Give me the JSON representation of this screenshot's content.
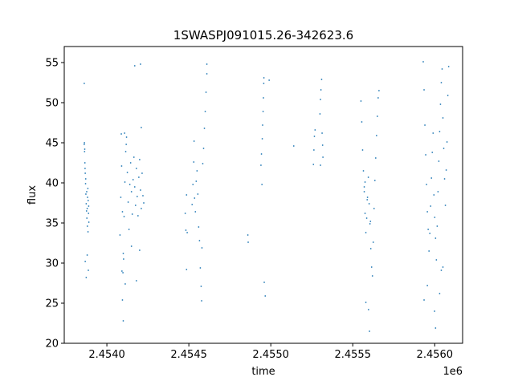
{
  "chart_data": {
    "type": "scatter",
    "title": "1SWASPJ091015.26-342623.6",
    "xlabel": "time",
    "ylabel": "flux",
    "x_offset_label": "1e6",
    "xlim": [
      2453740,
      2456170
    ],
    "ylim": [
      20,
      57
    ],
    "x_ticks": [
      {
        "value": 2454000,
        "label": "2.4540"
      },
      {
        "value": 2454500,
        "label": "2.4545"
      },
      {
        "value": 2455000,
        "label": "2.4550"
      },
      {
        "value": 2455500,
        "label": "2.4555"
      },
      {
        "value": 2456000,
        "label": "2.4560"
      }
    ],
    "y_ticks": [
      {
        "value": 20,
        "label": "20"
      },
      {
        "value": 25,
        "label": "25"
      },
      {
        "value": 30,
        "label": "30"
      },
      {
        "value": 35,
        "label": "35"
      },
      {
        "value": 40,
        "label": "40"
      },
      {
        "value": 45,
        "label": "45"
      },
      {
        "value": 50,
        "label": "50"
      },
      {
        "value": 55,
        "label": "55"
      }
    ],
    "grid": false,
    "marker_color": "#1f77b4",
    "series": [
      {
        "points": [
          [
            2453862,
            44.8
          ],
          [
            2453864,
            43.9
          ],
          [
            2453866,
            42.5
          ],
          [
            2453868,
            41.2
          ],
          [
            2453870,
            39.9
          ],
          [
            2453872,
            38.6
          ],
          [
            2453874,
            37.4
          ],
          [
            2453876,
            36.5
          ],
          [
            2453878,
            35.6
          ],
          [
            2453880,
            36.8
          ],
          [
            2453882,
            38.2
          ],
          [
            2453884,
            39.3
          ],
          [
            2453886,
            37.8
          ],
          [
            2453888,
            36.2
          ],
          [
            2453890,
            35.1
          ],
          [
            2453863,
            45.0
          ],
          [
            2453865,
            44.2
          ],
          [
            2453867,
            41.8
          ],
          [
            2453871,
            40.5
          ],
          [
            2453877,
            38.9
          ],
          [
            2453881,
            34.6
          ],
          [
            2453885,
            33.9
          ],
          [
            2453889,
            37.1
          ],
          [
            2453862,
            52.4
          ],
          [
            2453880,
            31.0
          ],
          [
            2453874,
            28.2
          ],
          [
            2453868,
            30.2
          ],
          [
            2453887,
            29.1
          ],
          [
            2454080,
            33.5
          ],
          [
            2454085,
            38.2
          ],
          [
            2454090,
            42.1
          ],
          [
            2454095,
            36.4
          ],
          [
            2454100,
            31.2
          ],
          [
            2454105,
            35.8
          ],
          [
            2454110,
            40.1
          ],
          [
            2454115,
            43.9
          ],
          [
            2454120,
            45.7
          ],
          [
            2454125,
            41.3
          ],
          [
            2454130,
            37.6
          ],
          [
            2454135,
            34.2
          ],
          [
            2454140,
            39.8
          ],
          [
            2454145,
            42.5
          ],
          [
            2454150,
            38.9
          ],
          [
            2454155,
            36.1
          ],
          [
            2454160,
            40.4
          ],
          [
            2454165,
            43.2
          ],
          [
            2454170,
            39.5
          ],
          [
            2454175,
            37.2
          ],
          [
            2454180,
            41.8
          ],
          [
            2454185,
            38.3
          ],
          [
            2454190,
            35.9
          ],
          [
            2454195,
            40.7
          ],
          [
            2454200,
            42.9
          ],
          [
            2454205,
            39.1
          ],
          [
            2454210,
            36.8
          ],
          [
            2454215,
            41.2
          ],
          [
            2454220,
            38.4
          ],
          [
            2454225,
            37.5
          ],
          [
            2454092,
            29.0
          ],
          [
            2454098,
            28.8
          ],
          [
            2454102,
            30.5
          ],
          [
            2454108,
            46.2
          ],
          [
            2454118,
            44.8
          ],
          [
            2454170,
            54.6
          ],
          [
            2454205,
            54.8
          ],
          [
            2454095,
            25.4
          ],
          [
            2454100,
            22.8
          ],
          [
            2454210,
            46.9
          ],
          [
            2454150,
            32.1
          ],
          [
            2454180,
            27.8
          ],
          [
            2454200,
            31.6
          ],
          [
            2454088,
            46.1
          ],
          [
            2454112,
            27.4
          ],
          [
            2454478,
            36.2
          ],
          [
            2454482,
            34.1
          ],
          [
            2454486,
            38.5
          ],
          [
            2454490,
            33.8
          ],
          [
            2454520,
            37.3
          ],
          [
            2454525,
            39.8
          ],
          [
            2454530,
            42.6
          ],
          [
            2454535,
            38.1
          ],
          [
            2454540,
            36.4
          ],
          [
            2454545,
            40.2
          ],
          [
            2454550,
            41.5
          ],
          [
            2454555,
            38.6
          ],
          [
            2454560,
            34.5
          ],
          [
            2454565,
            32.8
          ],
          [
            2454570,
            29.4
          ],
          [
            2454575,
            27.1
          ],
          [
            2454580,
            31.9
          ],
          [
            2454585,
            42.4
          ],
          [
            2454590,
            44.3
          ],
          [
            2454595,
            46.8
          ],
          [
            2454600,
            48.9
          ],
          [
            2454605,
            51.3
          ],
          [
            2454610,
            53.6
          ],
          [
            2454610,
            54.8
          ],
          [
            2454532,
            45.2
          ],
          [
            2454486,
            29.2
          ],
          [
            2454578,
            25.3
          ],
          [
            2454860,
            33.5
          ],
          [
            2454862,
            32.6
          ],
          [
            2454940,
            42.2
          ],
          [
            2454943,
            43.6
          ],
          [
            2454946,
            39.8
          ],
          [
            2454948,
            45.5
          ],
          [
            2454950,
            47.2
          ],
          [
            2454953,
            48.9
          ],
          [
            2454955,
            50.6
          ],
          [
            2454957,
            52.4
          ],
          [
            2454958,
            53.1
          ],
          [
            2454960,
            27.6
          ],
          [
            2454966,
            25.9
          ],
          [
            2454990,
            52.8
          ],
          [
            2455140,
            44.6
          ],
          [
            2455260,
            42.3
          ],
          [
            2455263,
            44.1
          ],
          [
            2455266,
            45.8
          ],
          [
            2455270,
            46.6
          ],
          [
            2455300,
            48.6
          ],
          [
            2455303,
            50.4
          ],
          [
            2455306,
            51.6
          ],
          [
            2455310,
            52.9
          ],
          [
            2455313,
            46.2
          ],
          [
            2455316,
            44.7
          ],
          [
            2455318,
            43.2
          ],
          [
            2455303,
            42.2
          ],
          [
            2455550,
            50.2
          ],
          [
            2455555,
            47.6
          ],
          [
            2455560,
            44.1
          ],
          [
            2455565,
            41.5
          ],
          [
            2455570,
            38.9
          ],
          [
            2455575,
            36.2
          ],
          [
            2455580,
            33.8
          ],
          [
            2455585,
            35.6
          ],
          [
            2455590,
            38.2
          ],
          [
            2455595,
            40.7
          ],
          [
            2455600,
            37.4
          ],
          [
            2455605,
            34.9
          ],
          [
            2455610,
            31.8
          ],
          [
            2455615,
            29.5
          ],
          [
            2455620,
            28.4
          ],
          [
            2455625,
            32.6
          ],
          [
            2455630,
            36.8
          ],
          [
            2455635,
            40.3
          ],
          [
            2455640,
            43.1
          ],
          [
            2455645,
            45.9
          ],
          [
            2455650,
            48.3
          ],
          [
            2455655,
            50.6
          ],
          [
            2455660,
            51.5
          ],
          [
            2455580,
            25.1
          ],
          [
            2455602,
            21.5
          ],
          [
            2455596,
            24.2
          ],
          [
            2455570,
            39.5
          ],
          [
            2455575,
            40.1
          ],
          [
            2455588,
            37.9
          ],
          [
            2455608,
            35.2
          ],
          [
            2455930,
            55.1
          ],
          [
            2455935,
            51.6
          ],
          [
            2455940,
            47.2
          ],
          [
            2455945,
            43.5
          ],
          [
            2455950,
            39.8
          ],
          [
            2455955,
            36.4
          ],
          [
            2455960,
            34.2
          ],
          [
            2455965,
            31.5
          ],
          [
            2455970,
            33.7
          ],
          [
            2455975,
            37.1
          ],
          [
            2455980,
            40.6
          ],
          [
            2455985,
            43.8
          ],
          [
            2455990,
            46.2
          ],
          [
            2455995,
            38.5
          ],
          [
            2456000,
            35.7
          ],
          [
            2456005,
            33.1
          ],
          [
            2456010,
            30.4
          ],
          [
            2456015,
            34.6
          ],
          [
            2456020,
            38.9
          ],
          [
            2456025,
            42.7
          ],
          [
            2456030,
            46.4
          ],
          [
            2456035,
            49.8
          ],
          [
            2456040,
            52.5
          ],
          [
            2456045,
            54.2
          ],
          [
            2456050,
            48.1
          ],
          [
            2456055,
            44.3
          ],
          [
            2456060,
            40.5
          ],
          [
            2456065,
            37.2
          ],
          [
            2456070,
            41.6
          ],
          [
            2456075,
            45.1
          ],
          [
            2456080,
            50.9
          ],
          [
            2456085,
            54.5
          ],
          [
            2455935,
            25.4
          ],
          [
            2456005,
            21.9
          ],
          [
            2456030,
            26.2
          ],
          [
            2456050,
            29.5
          ],
          [
            2456040,
            29.1
          ],
          [
            2455955,
            27.2
          ],
          [
            2455999,
            24.0
          ]
        ]
      }
    ]
  }
}
